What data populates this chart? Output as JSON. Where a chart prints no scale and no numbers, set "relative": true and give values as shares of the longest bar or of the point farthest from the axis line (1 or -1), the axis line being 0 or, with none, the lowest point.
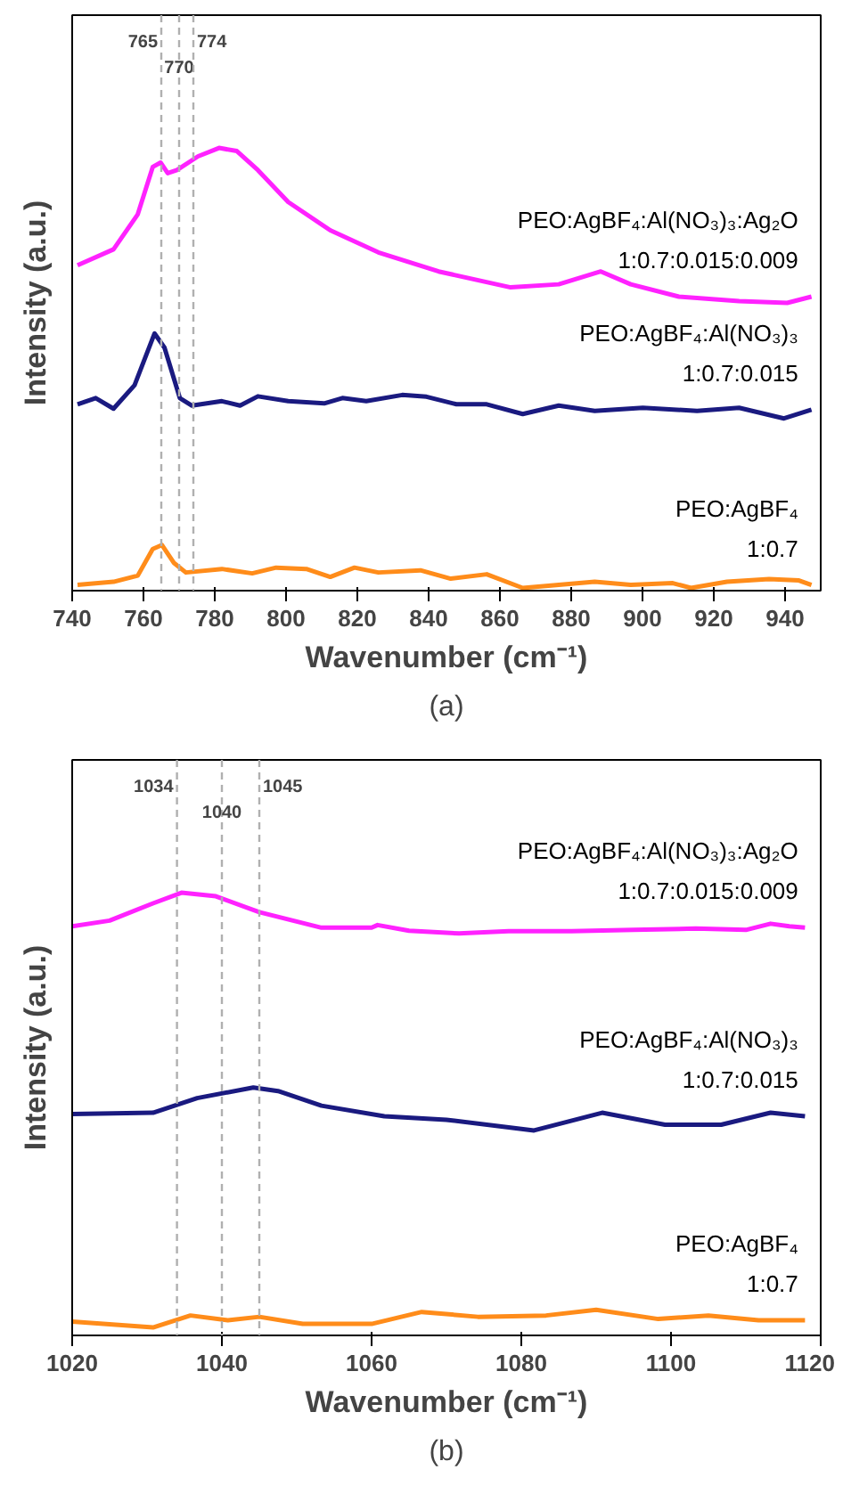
{
  "chart_data": [
    {
      "type": "line",
      "relative": true,
      "xlabel": "Wavenumber (cm⁻¹)",
      "ylabel": "Intensity (a.u.)",
      "xlim": [
        740,
        950
      ],
      "xticks": [
        740,
        760,
        780,
        800,
        820,
        840,
        860,
        880,
        900,
        920,
        940
      ],
      "grid": false,
      "legend": false,
      "marker": "none",
      "line_style": "solid",
      "annotations": [
        "(a)"
      ],
      "ref_lines": [
        {
          "axis": "x",
          "value": 765,
          "label": "765",
          "color": "#b0b0b0",
          "line_style": "dashed"
        },
        {
          "axis": "x",
          "value": 770,
          "label": "770",
          "color": "#b0b0b0",
          "line_style": "dashed"
        },
        {
          "axis": "x",
          "value": 774,
          "label": "774",
          "color": "#b0b0b0",
          "line_style": "dashed"
        }
      ],
      "series": [
        {
          "name": "PEO:AgBF₄:Al(NO₃)₃:Ag₂O\n1:0.7:0.015:0.009",
          "color": "#ff22ff",
          "x": [
            741.5,
            751.6,
            758.4,
            762.6,
            764.8,
            766.8,
            769.4,
            775.3,
            781.2,
            786.2,
            792.1,
            800.6,
            812.4,
            825.9,
            842.8,
            863.0,
            876.5,
            888.3,
            896.7,
            910.2,
            927.1,
            940.6,
            947.4
          ],
          "values": [
            0.735,
            0.771,
            0.85,
            0.957,
            0.967,
            0.943,
            0.95,
            0.981,
            1.0,
            0.993,
            0.95,
            0.878,
            0.814,
            0.764,
            0.721,
            0.685,
            0.692,
            0.721,
            0.692,
            0.664,
            0.654,
            0.65,
            0.664
          ]
        },
        {
          "name": "PEO:AgBF₄:Al(NO₃)₃\n1:0.7:0.015",
          "color": "#1a1a80",
          "x": [
            741.5,
            746.6,
            751.6,
            757.5,
            763.1,
            765.9,
            770.2,
            773.6,
            782.0,
            787.1,
            792.1,
            800.6,
            810.7,
            815.8,
            822.5,
            832.6,
            839.4,
            847.8,
            856.3,
            866.4,
            876.5,
            886.6,
            900.1,
            915.3,
            927.1,
            939.7,
            947.4
          ],
          "values": [
            0.421,
            0.435,
            0.411,
            0.464,
            0.581,
            0.549,
            0.435,
            0.418,
            0.428,
            0.418,
            0.439,
            0.428,
            0.423,
            0.435,
            0.428,
            0.442,
            0.438,
            0.421,
            0.421,
            0.399,
            0.418,
            0.406,
            0.413,
            0.406,
            0.413,
            0.389,
            0.409
          ]
        },
        {
          "name": "PEO:AgBF₄\n1:0.7",
          "color": "#ff8c1a",
          "x": [
            741.5,
            751.6,
            758.4,
            762.6,
            765.2,
            768.5,
            771.9,
            782.0,
            790.5,
            797.2,
            805.7,
            812.4,
            819.2,
            825.9,
            837.7,
            846.2,
            856.3,
            866.4,
            876.5,
            886.6,
            896.7,
            908.5,
            913.6,
            923.7,
            935.5,
            943.9,
            947.4
          ],
          "values": [
            0.013,
            0.02,
            0.034,
            0.094,
            0.103,
            0.063,
            0.041,
            0.049,
            0.039,
            0.052,
            0.049,
            0.031,
            0.052,
            0.041,
            0.046,
            0.027,
            0.037,
            0.006,
            0.013,
            0.02,
            0.013,
            0.017,
            0.006,
            0.02,
            0.026,
            0.023,
            0.013
          ]
        }
      ]
    },
    {
      "type": "line",
      "relative": true,
      "xlabel": "Wavenumber (cm⁻¹)",
      "ylabel": "Intensity (a.u.)",
      "xlim": [
        1020,
        1120
      ],
      "xticks": [
        1020,
        1040,
        1060,
        1080,
        1100,
        1120
      ],
      "grid": false,
      "legend": false,
      "marker": "none",
      "line_style": "solid",
      "annotations": [
        "(b)"
      ],
      "ref_lines": [
        {
          "axis": "x",
          "value": 1034,
          "label": "1034",
          "color": "#b0b0b0",
          "line_style": "dashed"
        },
        {
          "axis": "x",
          "value": 1040,
          "label": "1040",
          "color": "#b0b0b0",
          "line_style": "dashed"
        },
        {
          "axis": "x",
          "value": 1045,
          "label": "1045",
          "color": "#b0b0b0",
          "line_style": "dashed"
        }
      ],
      "series": [
        {
          "name": "PEO:AgBF₄:Al(NO₃)₃:Ag₂O\n1:0.7:0.015:0.009",
          "color": "#ff22ff",
          "x": [
            1020,
            1025,
            1030.8,
            1034.6,
            1039.2,
            1045,
            1053.3,
            1060,
            1060.8,
            1065,
            1071.7,
            1078.3,
            1086.7,
            1095,
            1103.3,
            1110,
            1113.3,
            1115.8,
            1117.9
          ],
          "values": [
            0.924,
            0.937,
            0.976,
            1.0,
            0.992,
            0.956,
            0.921,
            0.921,
            0.927,
            0.914,
            0.908,
            0.913,
            0.913,
            0.916,
            0.919,
            0.916,
            0.93,
            0.924,
            0.921
          ]
        },
        {
          "name": "PEO:AgBF₄:Al(NO₃)₃\n1:0.7:0.015",
          "color": "#1a1a80",
          "x": [
            1020,
            1030.8,
            1036.7,
            1044.2,
            1047.5,
            1053.3,
            1061.7,
            1070,
            1081.7,
            1090.8,
            1099.2,
            1106.7,
            1113.3,
            1117.9
          ],
          "values": [
            0.5,
            0.503,
            0.536,
            0.56,
            0.552,
            0.519,
            0.495,
            0.487,
            0.463,
            0.503,
            0.476,
            0.476,
            0.503,
            0.495
          ]
        },
        {
          "name": "PEO:AgBF₄\n1:0.7",
          "color": "#ff8c1a",
          "x": [
            1020,
            1030.8,
            1035.8,
            1040.8,
            1045,
            1050.8,
            1060,
            1066.7,
            1074.2,
            1083.3,
            1090,
            1098.3,
            1105,
            1111.7,
            1117.9
          ],
          "values": [
            0.031,
            0.018,
            0.045,
            0.034,
            0.042,
            0.026,
            0.026,
            0.053,
            0.042,
            0.045,
            0.058,
            0.037,
            0.045,
            0.034,
            0.034
          ]
        }
      ]
    }
  ]
}
